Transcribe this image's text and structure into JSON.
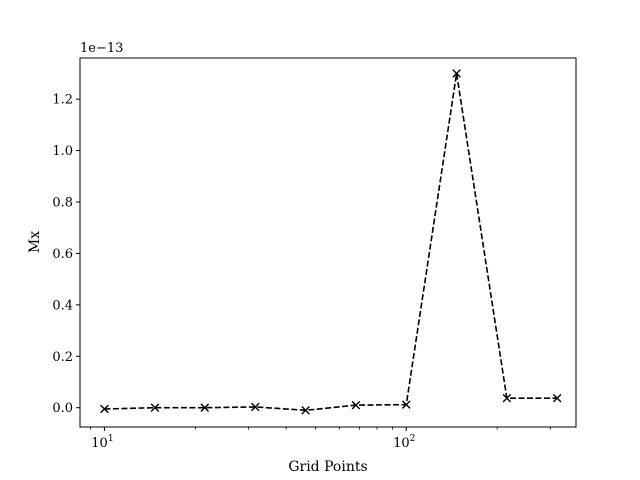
{
  "chart_data": {
    "type": "line",
    "title": "",
    "xlabel": "Grid Points",
    "ylabel": "Mx",
    "x_scale": "log",
    "y_offset_label": "1e−13",
    "xlim": [
      8.3,
      365
    ],
    "ylim": [
      -0.075,
      1.36
    ],
    "y_ticks": [
      0.0,
      0.2,
      0.4,
      0.6,
      0.8,
      1.0,
      1.2
    ],
    "y_tick_labels": [
      "0.0",
      "0.2",
      "0.4",
      "0.6",
      "0.8",
      "1.0",
      "1.2"
    ],
    "x_ticks": [
      10,
      100
    ],
    "x_tick_labels": [
      {
        "base": "10",
        "exp": "1"
      },
      {
        "base": "10",
        "exp": "2"
      }
    ],
    "grid": false,
    "series": [
      {
        "line_style": "dashed",
        "marker": "x",
        "color": "#000000",
        "x": [
          10,
          14.7,
          21.5,
          31.6,
          46.4,
          68.1,
          100,
          146.8,
          215.4,
          316.2
        ],
        "y": [
          -0.005,
          0.0,
          0.0,
          0.003,
          -0.01,
          0.01,
          0.012,
          1.3,
          0.037,
          0.037
        ]
      }
    ]
  }
}
